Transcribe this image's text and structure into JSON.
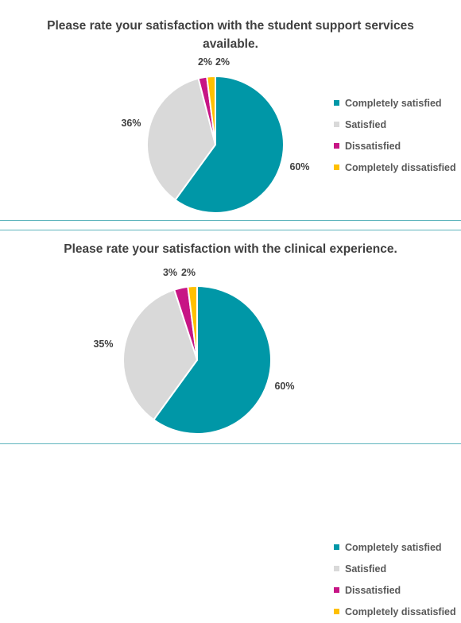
{
  "chart_data": [
    {
      "type": "pie",
      "title": "Please rate your satisfaction with the student support services available.",
      "categories": [
        "Completely satisfied",
        "Satisfied",
        "Dissatisfied",
        "Completely dissatisfied"
      ],
      "values": [
        60,
        36,
        2,
        2
      ],
      "labels": [
        "60%",
        "36%",
        "2%",
        "2%"
      ],
      "colors": [
        "#0097a7",
        "#d9d9d9",
        "#c71585",
        "#ffc000"
      ],
      "legend": "right"
    },
    {
      "type": "pie",
      "title": "Please rate your satisfaction with the clinical experience.",
      "categories": [
        "Completely satisfied",
        "Satisfied",
        "Dissatisfied",
        "Completely dissatisfied"
      ],
      "values": [
        60,
        35,
        3,
        2
      ],
      "labels": [
        "60%",
        "35%",
        "3%",
        "2%"
      ],
      "colors": [
        "#0097a7",
        "#d9d9d9",
        "#c71585",
        "#ffc000"
      ],
      "legend": "right"
    }
  ]
}
